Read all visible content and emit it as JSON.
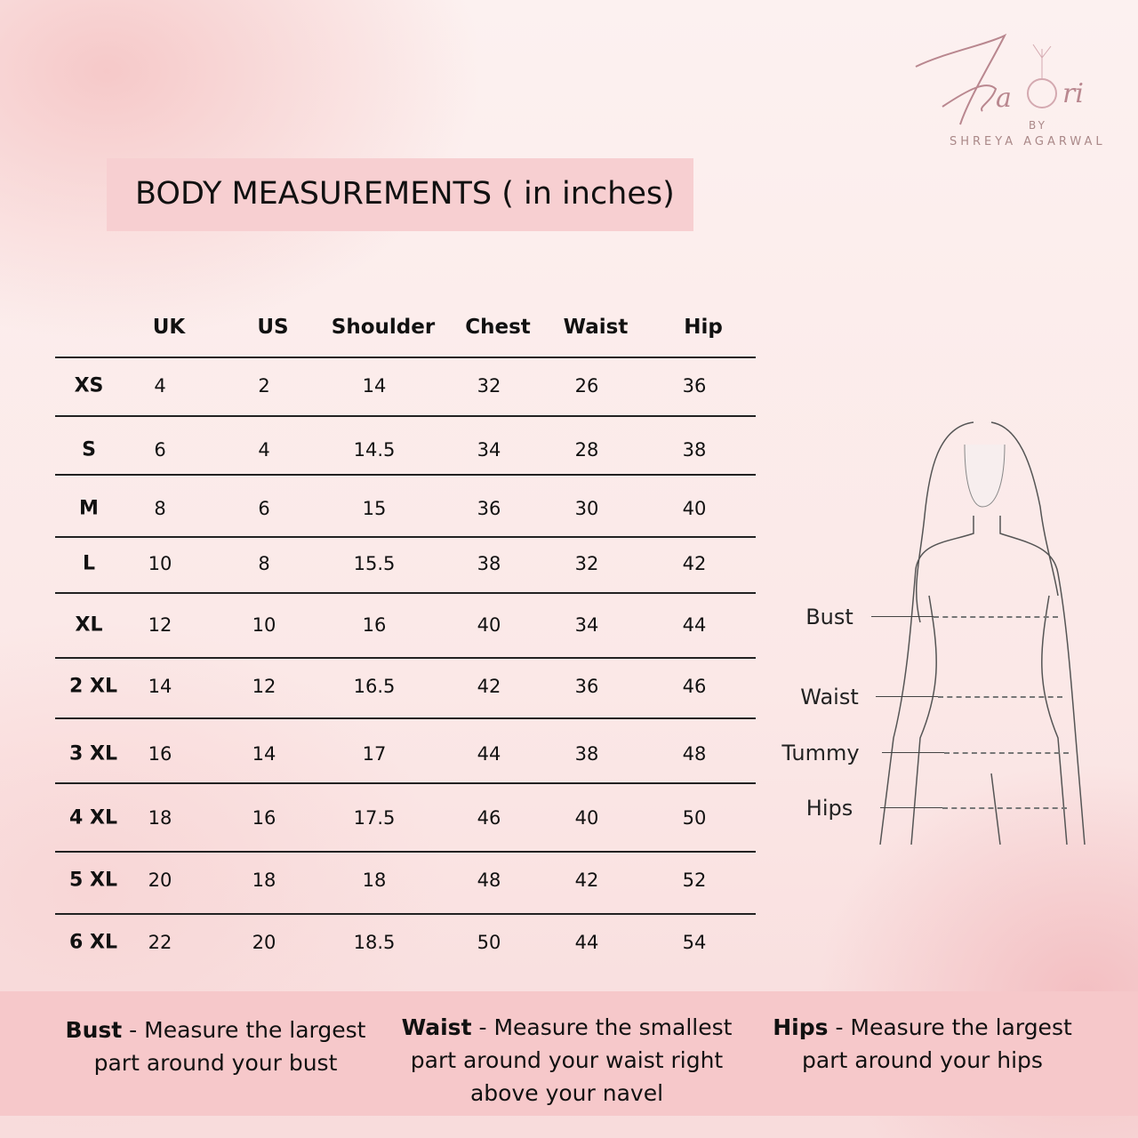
{
  "logo": {
    "script": "Kaori",
    "by": "BY",
    "name": "SHREYA AGARWAL"
  },
  "title": "BODY MEASUREMENTS ( in inches)",
  "table": {
    "headers": [
      "UK",
      "US",
      "Shoulder",
      "Chest",
      "Waist",
      "Hip"
    ],
    "rows": [
      {
        "size": "XS",
        "values": [
          "4",
          "2",
          "14",
          "32",
          "26",
          "36"
        ]
      },
      {
        "size": "S",
        "values": [
          "6",
          "4",
          "14.5",
          "34",
          "28",
          "38"
        ]
      },
      {
        "size": "M",
        "values": [
          "8",
          "6",
          "15",
          "36",
          "30",
          "40"
        ]
      },
      {
        "size": "L",
        "values": [
          "10",
          "8",
          "15.5",
          "38",
          "32",
          "42"
        ]
      },
      {
        "size": "XL",
        "values": [
          "12",
          "10",
          "16",
          "40",
          "34",
          "44"
        ]
      },
      {
        "size": "2 XL",
        "values": [
          "14",
          "12",
          "16.5",
          "42",
          "36",
          "46"
        ]
      },
      {
        "size": "3 XL",
        "values": [
          "16",
          "14",
          "17",
          "44",
          "38",
          "48"
        ]
      },
      {
        "size": "4 XL",
        "values": [
          "18",
          "16",
          "17.5",
          "46",
          "40",
          "50"
        ]
      },
      {
        "size": "5 XL",
        "values": [
          "20",
          "18",
          "18",
          "48",
          "42",
          "52"
        ]
      },
      {
        "size": "6 XL",
        "values": [
          "22",
          "20",
          "18.5",
          "50",
          "44",
          "54"
        ]
      }
    ]
  },
  "figure": {
    "labels": [
      "Bust",
      "Waist",
      "Tummy",
      "Hips"
    ]
  },
  "notes": [
    {
      "term": "Bust",
      "text": " - Measure the largest part around your bust"
    },
    {
      "term": "Waist",
      "text": " - Measure the smallest part around your waist right above your navel"
    },
    {
      "term": "Hips",
      "text": " - Measure the largest part around your hips"
    }
  ],
  "colors": {
    "title_bg": "#f7cfd1",
    "band_bg": "#f6c8ca",
    "logo": "#b9878f"
  }
}
